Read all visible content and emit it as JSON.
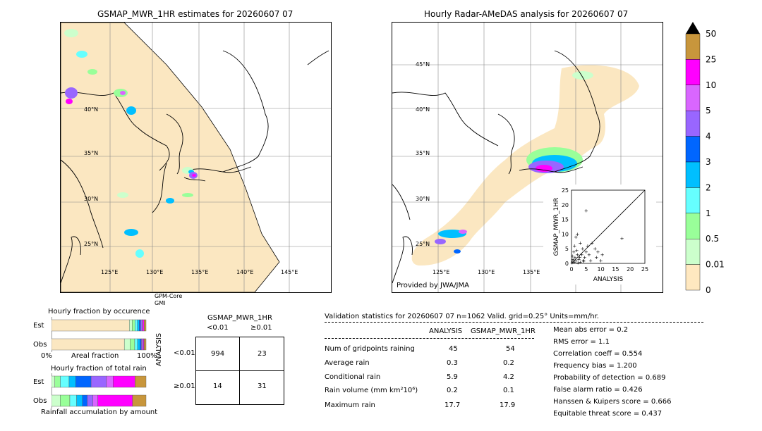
{
  "left_map": {
    "title": "GSMAP_MWR_1HR estimates for 20260607 07",
    "lat_labels": [
      "40°N",
      "35°N",
      "30°N",
      "25°N"
    ],
    "lon_labels": [
      "125°E",
      "130°E",
      "135°E",
      "140°E",
      "145°E"
    ],
    "sat_label_1": "GPM-Core",
    "sat_label_2": "GMI"
  },
  "right_map": {
    "title": "Hourly Radar-AMeDAS analysis for 20260607 07",
    "lat_labels": [
      "45°N",
      "40°N",
      "35°N",
      "30°N",
      "25°N"
    ],
    "lon_labels": [
      "125°E",
      "130°E",
      "135°E"
    ],
    "credit": "Provided by JWA/JMA"
  },
  "colorbar": {
    "labels": [
      "50",
      "25",
      "10",
      "5",
      "4",
      "3",
      "2",
      "1",
      "0.5",
      "0.01",
      "0"
    ],
    "colors": [
      "#c8963c",
      "#ff00ff",
      "#d966ff",
      "#9966ff",
      "#0066ff",
      "#00bfff",
      "#66ffff",
      "#99ff99",
      "#ccffcc",
      "#ffe8c0"
    ]
  },
  "chart_data": [
    {
      "type": "scatter",
      "title": "",
      "xlabel": "ANALYSIS",
      "ylabel": "GSMAP_MWR_1HR",
      "xlim": [
        0,
        25
      ],
      "ylim": [
        0,
        25
      ],
      "x_ticks": [
        "0",
        "5",
        "10",
        "15",
        "20",
        "25"
      ],
      "y_ticks": [
        "0",
        "5",
        "10",
        "15",
        "20",
        "25"
      ],
      "points": [
        [
          0.2,
          0.3
        ],
        [
          0.5,
          0.8
        ],
        [
          1,
          0.5
        ],
        [
          1.2,
          2
        ],
        [
          1.5,
          1
        ],
        [
          2,
          3
        ],
        [
          2.5,
          1.5
        ],
        [
          3,
          0.5
        ],
        [
          0.8,
          4
        ],
        [
          1,
          6
        ],
        [
          1.5,
          9
        ],
        [
          2,
          10
        ],
        [
          3,
          7
        ],
        [
          3.5,
          3
        ],
        [
          4,
          1
        ],
        [
          4.5,
          2
        ],
        [
          5,
          4
        ],
        [
          5.5,
          6
        ],
        [
          6,
          3
        ],
        [
          6.5,
          1
        ],
        [
          7,
          7
        ],
        [
          8,
          5
        ],
        [
          8.5,
          2
        ],
        [
          9,
          4
        ],
        [
          10,
          1
        ],
        [
          10.5,
          3
        ],
        [
          0.5,
          1.5
        ],
        [
          2.2,
          0.3
        ],
        [
          3.8,
          5
        ],
        [
          5,
          18
        ],
        [
          17.2,
          8.5
        ],
        [
          0.3,
          2.5
        ],
        [
          1.8,
          4.5
        ],
        [
          2.8,
          2.2
        ],
        [
          4.2,
          0.8
        ]
      ]
    },
    {
      "type": "bar",
      "title": "Hourly fraction by occurence",
      "categories": [
        "Est",
        "Obs"
      ],
      "xlabel": "Areal fraction",
      "x_tick_labels": [
        "0%",
        "100%"
      ],
      "segments": {
        "Est": [
          0.823,
          0.03,
          0.03,
          0.025,
          0.02,
          0.015,
          0.015,
          0.01,
          0.012,
          0.02
        ],
        "Obs": [
          0.77,
          0.06,
          0.05,
          0.03,
          0.025,
          0.015,
          0.012,
          0.01,
          0.008,
          0.02
        ]
      }
    },
    {
      "type": "bar",
      "title": "Hourly fraction of total rain",
      "categories": [
        "Est",
        "Obs"
      ],
      "xlabel": "Rainfall accumulation by amount",
      "segments": {
        "Est": [
          0.0,
          0.03,
          0.05,
          0.08,
          0.06,
          0.14,
          0.14,
          0.06,
          0.2,
          0.1
        ],
        "Obs": [
          0.0,
          0.09,
          0.1,
          0.07,
          0.06,
          0.05,
          0.06,
          0.05,
          0.36,
          0.14
        ]
      }
    }
  ],
  "contingency": {
    "header": "GSMAP_MWR_1HR",
    "col_labels": [
      "<0.01",
      "≥0.01"
    ],
    "row_labels": [
      "<0.01",
      "≥0.01"
    ],
    "side_label": "ANALYSIS",
    "cells": [
      "994",
      "23",
      "14",
      "31"
    ]
  },
  "validation": {
    "header": "Validation statistics for 20260607 07  n=1062 Valid. grid=0.25° Units=mm/hr.",
    "col1": "ANALYSIS",
    "col2": "GSMAP_MWR_1HR",
    "rows": [
      {
        "label": "Num of gridpoints raining",
        "a": "45",
        "b": "54"
      },
      {
        "label": "Average rain",
        "a": "0.3",
        "b": "0.2"
      },
      {
        "label": "Conditional rain",
        "a": "5.9",
        "b": "4.2"
      },
      {
        "label": "Rain volume (mm km²10⁶)",
        "a": "0.2",
        "b": "0.1"
      },
      {
        "label": "Maximum rain",
        "a": "17.7",
        "b": "17.9"
      }
    ],
    "scores": [
      "Mean abs error =    0.2",
      "RMS error =    1.1",
      "Correlation coeff =  0.554",
      "Frequency bias =  1.200",
      "Probability of detection =  0.689",
      "False alarm ratio =  0.426",
      "Hanssen & Kuipers score =  0.666",
      "Equitable threat score =  0.437"
    ]
  }
}
